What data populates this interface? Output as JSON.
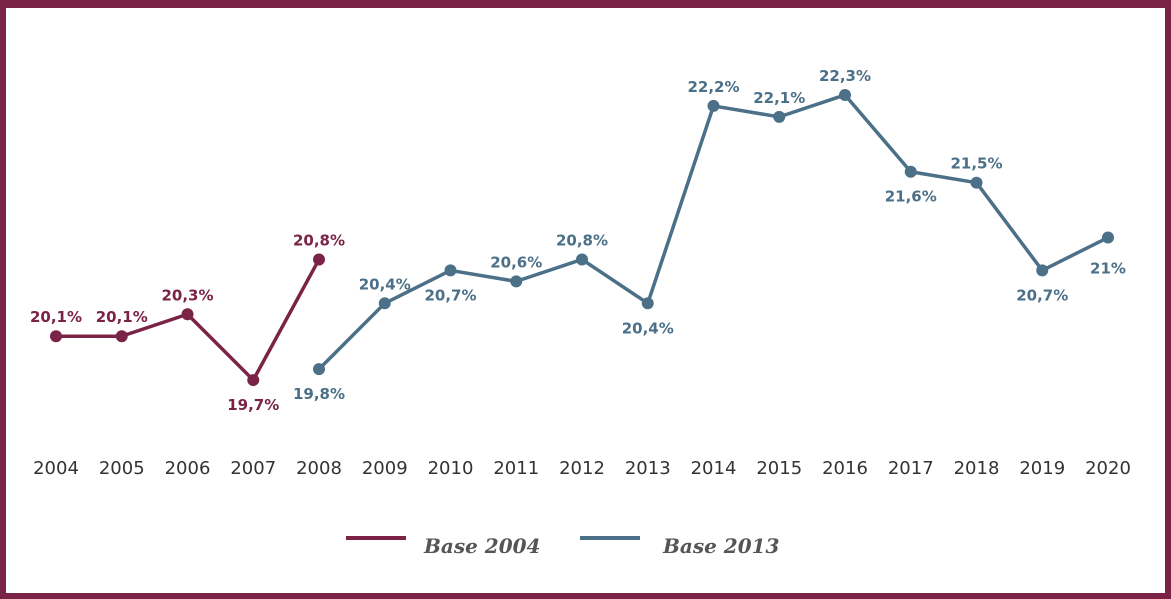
{
  "chart_data": {
    "type": "line",
    "categories": [
      "2004",
      "2005",
      "2006",
      "2007",
      "2008",
      "2009",
      "2010",
      "2011",
      "2012",
      "2013",
      "2014",
      "2015",
      "2016",
      "2017",
      "2018",
      "2019",
      "2020"
    ],
    "series": [
      {
        "name": "Base 2004",
        "color": "#7a2346",
        "points": [
          {
            "x": "2004",
            "y": 20.1,
            "label": "20,1%"
          },
          {
            "x": "2005",
            "y": 20.1,
            "label": "20,1%"
          },
          {
            "x": "2006",
            "y": 20.3,
            "label": "20,3%"
          },
          {
            "x": "2007",
            "y": 19.7,
            "label": "19,7%"
          },
          {
            "x": "2008",
            "y": 20.8,
            "label": "20,8%"
          }
        ]
      },
      {
        "name": "Base 2013",
        "color": "#4b7087",
        "points": [
          {
            "x": "2008",
            "y": 19.8,
            "label": "19,8%"
          },
          {
            "x": "2009",
            "y": 20.4,
            "label": "20,4%"
          },
          {
            "x": "2010",
            "y": 20.7,
            "label": "20,7%"
          },
          {
            "x": "2011",
            "y": 20.6,
            "label": "20,6%"
          },
          {
            "x": "2012",
            "y": 20.8,
            "label": "20,8%"
          },
          {
            "x": "2013",
            "y": 20.4,
            "label": "20,4%"
          },
          {
            "x": "2014",
            "y": 22.2,
            "label": "22,2%"
          },
          {
            "x": "2015",
            "y": 22.1,
            "label": "22,1%"
          },
          {
            "x": "2016",
            "y": 22.3,
            "label": "22,3%"
          },
          {
            "x": "2017",
            "y": 21.6,
            "label": "21,6%"
          },
          {
            "x": "2018",
            "y": 21.5,
            "label": "21,5%"
          },
          {
            "x": "2019",
            "y": 20.7,
            "label": "20,7%"
          },
          {
            "x": "2020",
            "y": 21.0,
            "label": "21%"
          }
        ]
      }
    ],
    "ylim": [
      19.5,
      22.4
    ],
    "grid": false,
    "legend_position": "bottom"
  },
  "legend": {
    "items": [
      {
        "label": "Base 2004",
        "color": "#7a2346"
      },
      {
        "label": "Base 2013",
        "color": "#4b7087"
      }
    ]
  }
}
